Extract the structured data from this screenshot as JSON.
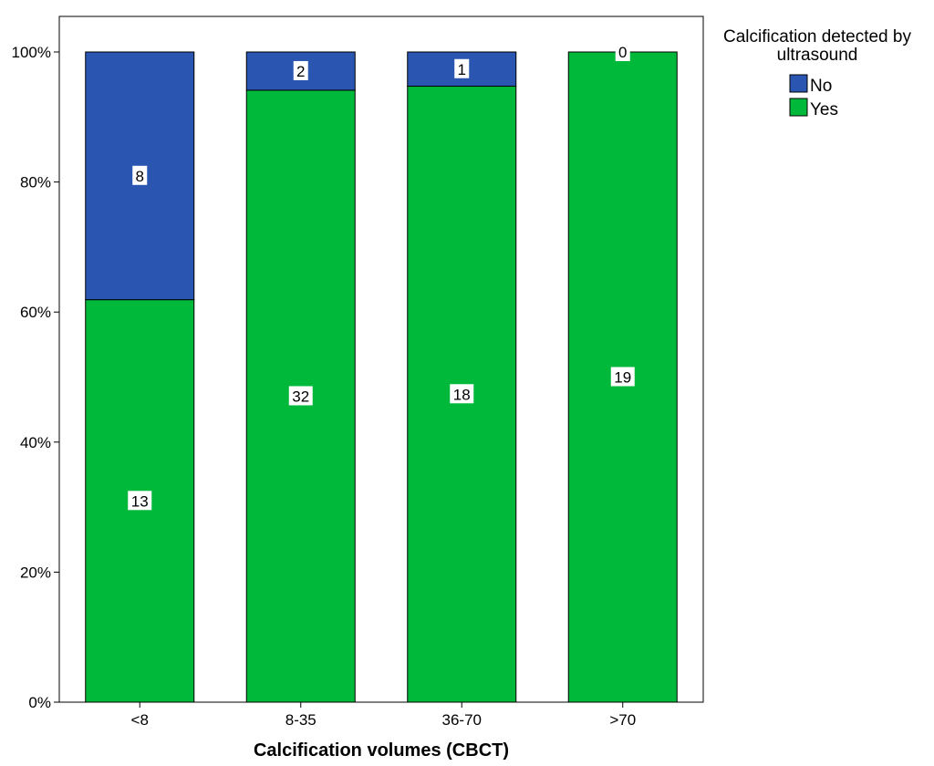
{
  "chart_data": {
    "type": "bar",
    "stacked": true,
    "normalized_percent": true,
    "categories": [
      "<8",
      "8-35",
      "36-70",
      ">70"
    ],
    "series": [
      {
        "name": "Yes",
        "color": "#00b93a",
        "counts": [
          13,
          32,
          18,
          19
        ]
      },
      {
        "name": "No",
        "color": "#2a55b0",
        "counts": [
          8,
          2,
          1,
          0
        ]
      }
    ],
    "ylim": [
      0,
      100
    ],
    "yticks": [
      "0%",
      "20%",
      "40%",
      "60%",
      "80%",
      "100%"
    ],
    "xlabel": "Calcification volumes (CBCT)",
    "ylabel": "",
    "grid": false,
    "legend": {
      "title_line1": "Calcification detected by",
      "title_line2": "ultrasound",
      "placement": "top-right",
      "order": [
        "No",
        "Yes"
      ]
    }
  }
}
